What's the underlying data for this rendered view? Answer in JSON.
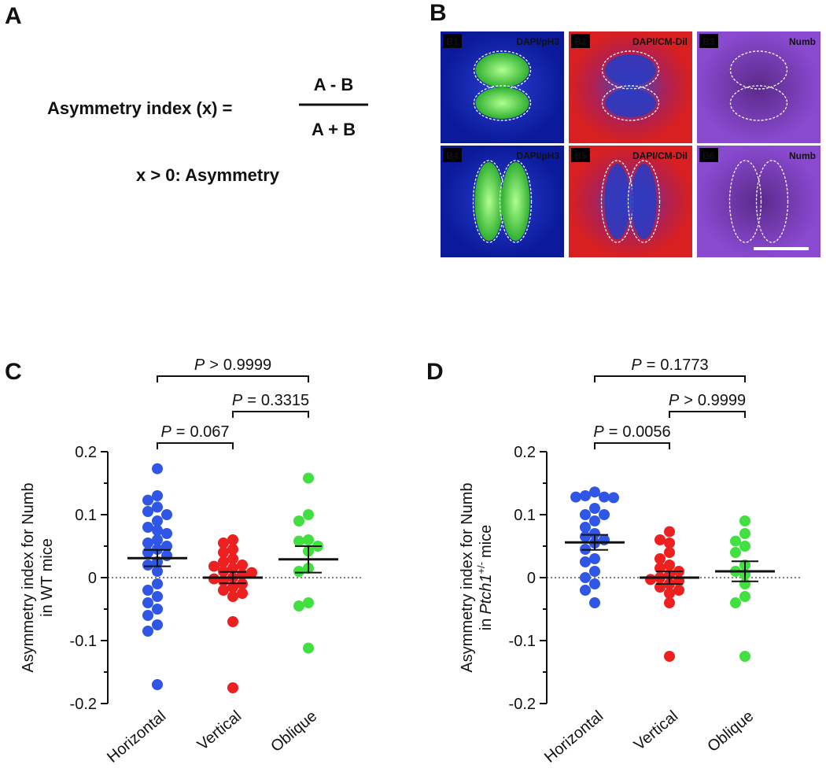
{
  "panel_a": {
    "label": "A",
    "lhs": "Asymmetry index (x) =",
    "numerator": "A - B",
    "denominator": "A + B",
    "condition": "x > 0: Asymmetry"
  },
  "panel_b": {
    "label": "B",
    "tiles": [
      {
        "id": "B1",
        "stain": "DAPI/pH3"
      },
      {
        "id": "B2",
        "stain": "DAPI/CM-Dil"
      },
      {
        "id": "B3",
        "stain": "Numb"
      },
      {
        "id": "B4",
        "stain": "DAPI/pH3"
      },
      {
        "id": "B5",
        "stain": "DAPI/CM-Dil"
      },
      {
        "id": "B6",
        "stain": "Numb"
      }
    ]
  },
  "chart_data": [
    {
      "type": "scatter",
      "label": "C",
      "categories": [
        "Horizontal",
        "Vertical",
        "Oblique"
      ],
      "colors": [
        "#2f56e6",
        "#ee1f1f",
        "#3fe03f"
      ],
      "points": [
        [
          0.173,
          0.13,
          0.123,
          0.112,
          0.105,
          0.1,
          0.09,
          0.08,
          0.075,
          0.07,
          0.06,
          0.055,
          0.05,
          0.045,
          0.04,
          0.035,
          0.025,
          0.02,
          0.01,
          -0.01,
          -0.02,
          -0.03,
          -0.04,
          -0.05,
          -0.06,
          -0.075,
          -0.085,
          -0.17
        ],
        [
          0.06,
          0.055,
          0.045,
          0.04,
          0.03,
          0.025,
          0.02,
          0.018,
          0.015,
          0.01,
          0.008,
          0.005,
          0,
          -0.002,
          -0.005,
          -0.01,
          -0.015,
          -0.02,
          -0.025,
          -0.03,
          -0.07,
          -0.175
        ],
        [
          0.158,
          0.1,
          0.09,
          0.06,
          0.058,
          0.05,
          0.042,
          0.015,
          0.01,
          -0.04,
          -0.045,
          -0.112
        ]
      ],
      "means": [
        0.031,
        0,
        0.029
      ],
      "sems": [
        0.013,
        0.009,
        0.021
      ],
      "ylim": [
        -0.2,
        0.2
      ],
      "yticks": [
        -0.2,
        -0.1,
        0,
        0.1,
        0.2
      ],
      "yminor": [
        -0.15,
        -0.05,
        0.05,
        0.15
      ],
      "zero_line": true,
      "ylabel": [
        "Asymmetry index for Numb",
        "in WT mice"
      ],
      "p_symbol": "P",
      "comparisons": [
        {
          "groups": [
            0,
            2
          ],
          "relation": ">",
          "p": 0.9999
        },
        {
          "groups": [
            1,
            2
          ],
          "relation": "=",
          "p": 0.3315
        },
        {
          "groups": [
            0,
            1
          ],
          "relation": "=",
          "p": 0.067
        }
      ]
    },
    {
      "type": "scatter",
      "label": "D",
      "categories": [
        "Horizontal",
        "Vertical",
        "Oblique"
      ],
      "colors": [
        "#2f56e6",
        "#ee1f1f",
        "#3fe03f"
      ],
      "points": [
        [
          0.136,
          0.13,
          0.128,
          0.128,
          0.127,
          0.11,
          0.1,
          0.1,
          0.09,
          0.08,
          0.07,
          0.065,
          0.06,
          0.055,
          0.045,
          0.03,
          0.025,
          0.01,
          0,
          -0.01,
          -0.02,
          -0.04
        ],
        [
          0.073,
          0.06,
          0.055,
          0.04,
          0.03,
          0.02,
          0.015,
          0.01,
          0.005,
          0,
          -0.003,
          -0.005,
          -0.01,
          -0.015,
          -0.02,
          -0.025,
          -0.04,
          -0.125
        ],
        [
          0.09,
          0.07,
          0.058,
          0.05,
          0.04,
          0.02,
          0.01,
          0.005,
          -0.01,
          -0.03,
          -0.04,
          -0.125
        ]
      ],
      "means": [
        0.056,
        0,
        0.01
      ],
      "sems": [
        0.012,
        0.01,
        0.016
      ],
      "ylim": [
        -0.2,
        0.2
      ],
      "yticks": [
        -0.2,
        -0.1,
        0,
        0.1,
        0.2
      ],
      "yminor": [
        -0.15,
        -0.05,
        0.05,
        0.15
      ],
      "zero_line": true,
      "ylabel": [
        "Asymmetry index for Numb",
        {
          "pre": "in",
          "gene": "Ptch1",
          "sup": "+/-",
          "post": "mice"
        }
      ],
      "p_symbol": "P",
      "comparisons": [
        {
          "groups": [
            0,
            2
          ],
          "relation": "=",
          "p": 0.1773
        },
        {
          "groups": [
            1,
            2
          ],
          "relation": ">",
          "p": 0.9999
        },
        {
          "groups": [
            0,
            1
          ],
          "relation": "=",
          "p": 0.0056
        }
      ]
    }
  ]
}
